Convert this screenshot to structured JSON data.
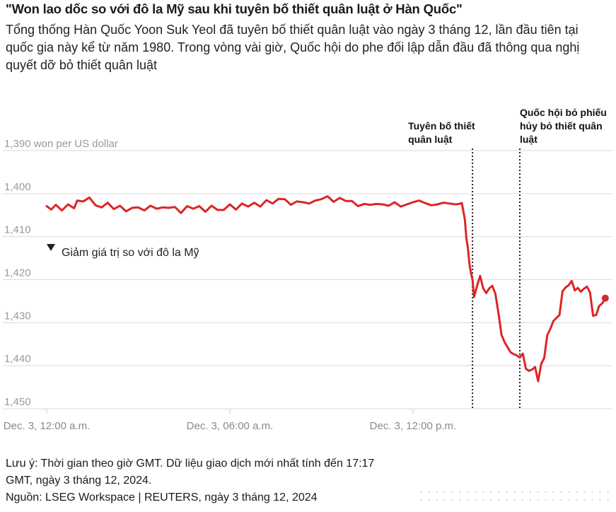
{
  "header": {
    "title": "\"Won lao dốc so với đô la Mỹ sau khi tuyên bố thiết quân luật ở Hàn Quốc\"",
    "subtitle": "Tổng thống Hàn Quốc Yoon Suk Yeol đã tuyên bố thiết quân luật vào ngày 3 tháng 12, lần đầu tiên tại quốc gia này kể từ năm 1980. Trong vòng vài giờ, Quốc hội do phe đối lập dẫn đầu đã thông qua nghị quyết dỡ bỏ thiết quân luật"
  },
  "footer": {
    "note": "Lưu ý: Thời gian theo giờ GMT. Dữ liệu giao dịch mới nhất tính đến 17:17 GMT, ngày 3 tháng 12, 2024.",
    "source": "Nguồn: LSEG Workspace | REUTERS, ngày 3 tháng 12, 2024"
  },
  "chart_data": {
    "type": "line",
    "title": "",
    "xlabel": "",
    "ylabel": "won per US dollar",
    "y_inverted": true,
    "ylim": [
      1390,
      1450
    ],
    "yticks": [
      1390,
      1400,
      1410,
      1420,
      1430,
      1440,
      1450
    ],
    "ytick_labels": [
      "1,390 won per US dollar",
      "1,400",
      "1,410",
      "1,420",
      "1,430",
      "1,440",
      "1,450"
    ],
    "xlim": [
      0,
      18.35
    ],
    "xticks": [
      0,
      6,
      12
    ],
    "xtick_labels": [
      "Dec. 3, 12:00 a.m.",
      "Dec. 3, 06:00 a.m.",
      "Dec. 3, 12:00 p.m."
    ],
    "direction_label": "Giảm giá trị so với đô la Mỹ",
    "grid": true,
    "line_color": "#dc2626",
    "annotations": [
      {
        "x": 13.95,
        "label": "Tuyên bố thiết quân luật"
      },
      {
        "x": 15.5,
        "label": "Quốc hội bỏ phiếu hủy bỏ thiết quân luật"
      }
    ],
    "series": [
      {
        "x": [
          0.0,
          0.15,
          0.3,
          0.5,
          0.7,
          0.9,
          1.0,
          1.2,
          1.4,
          1.6,
          1.8,
          2.0,
          2.2,
          2.4,
          2.6,
          2.8,
          3.0,
          3.2,
          3.4,
          3.6,
          3.8,
          4.0,
          4.2,
          4.4,
          4.6,
          4.8,
          5.0,
          5.2,
          5.4,
          5.6,
          5.8,
          6.0,
          6.2,
          6.4,
          6.6,
          6.8,
          7.0,
          7.2,
          7.4,
          7.6,
          7.8,
          8.0,
          8.2,
          8.4,
          8.6,
          8.8,
          9.0,
          9.2,
          9.4,
          9.6,
          9.8,
          10.0,
          10.2,
          10.4,
          10.6,
          10.8,
          11.0,
          11.2,
          11.4,
          11.6,
          11.8,
          12.0,
          12.2,
          12.4,
          12.6,
          12.8,
          13.0,
          13.2,
          13.4,
          13.5,
          13.6,
          13.7,
          13.75,
          13.8,
          13.85,
          13.9,
          13.95,
          14.0,
          14.1,
          14.2,
          14.3,
          14.4,
          14.5,
          14.6,
          14.7,
          14.8,
          14.9,
          15.0,
          15.1,
          15.2,
          15.3,
          15.4,
          15.5,
          15.6,
          15.7,
          15.8,
          15.9,
          16.0,
          16.1,
          16.2,
          16.3,
          16.4,
          16.5,
          16.6,
          16.7,
          16.8,
          16.9,
          17.0,
          17.1,
          17.2,
          17.3,
          17.4,
          17.5,
          17.6,
          17.7,
          17.8,
          17.9,
          18.0,
          18.1,
          18.2,
          18.3
        ],
        "y": [
          1402.9,
          1403.7,
          1402.6,
          1403.9,
          1402.5,
          1403.4,
          1401.6,
          1401.8,
          1400.9,
          1402.7,
          1403.2,
          1402.1,
          1403.6,
          1402.8,
          1404.1,
          1403.3,
          1403.2,
          1403.9,
          1402.8,
          1403.5,
          1403.2,
          1403.3,
          1403.1,
          1404.5,
          1402.9,
          1403.5,
          1402.9,
          1404.2,
          1402.8,
          1403.8,
          1403.8,
          1402.5,
          1403.7,
          1402.3,
          1403.0,
          1402.1,
          1403.0,
          1401.5,
          1402.3,
          1401.2,
          1401.3,
          1402.6,
          1401.8,
          1402.0,
          1402.3,
          1401.6,
          1401.3,
          1400.6,
          1401.9,
          1401.0,
          1401.7,
          1401.7,
          1402.9,
          1402.4,
          1402.6,
          1402.4,
          1402.5,
          1402.8,
          1402.0,
          1403.0,
          1402.5,
          1402.0,
          1401.6,
          1402.2,
          1402.7,
          1402.5,
          1402.1,
          1402.3,
          1402.5,
          1402.4,
          1402.2,
          1406.0,
          1410.5,
          1412.6,
          1416.3,
          1418.5,
          1420.0,
          1424.0,
          1421.4,
          1419.1,
          1422.0,
          1423.1,
          1422.0,
          1421.4,
          1423.3,
          1427.8,
          1432.8,
          1434.5,
          1435.7,
          1436.9,
          1437.3,
          1437.6,
          1438.1,
          1437.2,
          1440.7,
          1441.2,
          1440.9,
          1440.3,
          1443.6,
          1439.6,
          1438.2,
          1432.9,
          1431.4,
          1429.6,
          1428.9,
          1428.2,
          1422.7,
          1421.8,
          1421.3,
          1420.3,
          1422.5,
          1421.9,
          1422.8,
          1422.1,
          1421.6,
          1423.0,
          1428.4,
          1428.2,
          1426.1,
          1425.5,
          1424.3
        ]
      }
    ]
  }
}
